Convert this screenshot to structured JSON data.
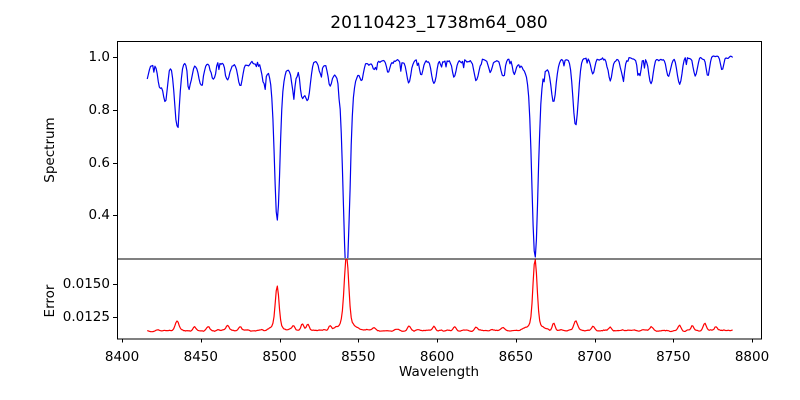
{
  "chart_data": {
    "type": "line",
    "title": "20110423_1738m64_080",
    "xlabel": "Wavelength",
    "grid": false,
    "legend": null,
    "xlim": [
      8396.8,
      8805.7
    ],
    "xticks": [
      8400,
      8450,
      8500,
      8550,
      8600,
      8650,
      8700,
      8750,
      8800
    ],
    "xtick_labels": [
      "8400",
      "8450",
      "8500",
      "8550",
      "8600",
      "8650",
      "8700",
      "8750",
      "8800"
    ],
    "x_start": 8416,
    "x_end": 8788,
    "axis_color": "#000000",
    "panels": [
      {
        "name": "spectrum",
        "ylabel": "Spectrum",
        "color": "#0000ee",
        "ylim": [
          0.2368,
          1.0608
        ],
        "yticks": [
          0.4,
          0.6,
          0.8,
          1.0
        ],
        "ytick_labels": [
          "0.4",
          "0.6",
          "0.8",
          "1.0"
        ],
        "model": {
          "description": "normalized stellar spectrum, continuum ~0.97-1.0 with absorption lines; Ca II triplet at 8498/8542/8662",
          "continuum_start": 0.972,
          "continuum_end": 0.998,
          "noise_amp": 0.012,
          "micro_dip_prob": 0.12,
          "micro_dip_depth": 0.03,
          "seed": 7,
          "step": 0.7,
          "absorption_lines_format": "[center_angstrom, min_flux, sigma_angstrom]",
          "absorption_lines": [
            [
              8414.0,
              0.9,
              2.2
            ],
            [
              8424.0,
              0.89,
              1.3
            ],
            [
              8427.5,
              0.835,
              1.4
            ],
            [
              8435.0,
              0.74,
              1.6
            ],
            [
              8443.0,
              0.9,
              1.3
            ],
            [
              8450.0,
              0.89,
              1.4
            ],
            [
              8458.0,
              0.915,
              1.2
            ],
            [
              8467.0,
              0.905,
              1.4
            ],
            [
              8475.0,
              0.885,
              1.5
            ],
            [
              8490.0,
              0.91,
              1.2
            ],
            [
              8498.5,
              0.445,
              1.7
            ],
            [
              8509.0,
              0.878,
              1.3
            ],
            [
              8514.5,
              0.85,
              1.3
            ],
            [
              8518.0,
              0.84,
              1.5
            ],
            [
              8526.0,
              0.94,
              1.0
            ],
            [
              8532.0,
              0.91,
              1.2
            ],
            [
              8542.5,
              0.27,
              2.0
            ],
            [
              8552.0,
              0.94,
              1.0
            ],
            [
              8560.0,
              0.945,
              1.0
            ],
            [
              8569.0,
              0.94,
              1.0
            ],
            [
              8582.0,
              0.9,
              1.4
            ],
            [
              8590.0,
              0.935,
              1.0
            ],
            [
              8598.0,
              0.9,
              1.4
            ],
            [
              8611.0,
              0.925,
              1.2
            ],
            [
              8625.0,
              0.915,
              1.4
            ],
            [
              8634.0,
              0.94,
              1.0
            ],
            [
              8642.0,
              0.925,
              1.2
            ],
            [
              8649.0,
              0.94,
              1.0
            ],
            [
              8662.2,
              0.33,
              1.9
            ],
            [
              8674.0,
              0.83,
              1.5
            ],
            [
              8688.0,
              0.745,
              1.7
            ],
            [
              8699.0,
              0.93,
              1.2
            ],
            [
              8710.0,
              0.915,
              1.3
            ],
            [
              8718.0,
              0.93,
              1.2
            ],
            [
              8728.0,
              0.935,
              1.0
            ],
            [
              8736.0,
              0.9,
              1.4
            ],
            [
              8747.0,
              0.93,
              1.2
            ],
            [
              8754.0,
              0.89,
              1.5
            ],
            [
              8764.0,
              0.93,
              1.2
            ],
            [
              8772.0,
              0.935,
              1.0
            ],
            [
              8781.0,
              0.945,
              1.0
            ]
          ],
          "wings_format": "[center_angstrom, extra_depth, sigma_angstrom]",
          "wings": [
            [
              8498.5,
              0.07,
              5.0
            ],
            [
              8542.5,
              0.1,
              6.0
            ],
            [
              8662.2,
              0.09,
              5.5
            ]
          ]
        }
      },
      {
        "name": "error",
        "ylabel": "Error",
        "color": "#ff0000",
        "ylim": [
          0.010833,
          0.01697
        ],
        "yticks": [
          0.0125,
          0.015
        ],
        "ytick_labels": [
          "0.0125",
          "0.0150"
        ],
        "model": {
          "description": "error spectrum, flat baseline with spikes at strong absorption lines",
          "baseline": 0.01145,
          "noise_amp": 0.0001,
          "seed": 13,
          "step": 0.7,
          "peaks_format": "[center_angstrom, peak_value, sigma_angstrom]",
          "peaks": [
            [
              8435.0,
              0.01225,
              1.2
            ],
            [
              8446.0,
              0.0118,
              0.9
            ],
            [
              8455.0,
              0.01175,
              0.9
            ],
            [
              8467.0,
              0.0118,
              0.9
            ],
            [
              8475.0,
              0.0118,
              0.9
            ],
            [
              8498.5,
              0.01455,
              1.2
            ],
            [
              8509.0,
              0.0118,
              0.9
            ],
            [
              8514.5,
              0.01195,
              0.9
            ],
            [
              8518.0,
              0.0119,
              0.9
            ],
            [
              8532.0,
              0.01175,
              0.9
            ],
            [
              8542.5,
              0.0166,
              1.4
            ],
            [
              8560.0,
              0.0117,
              0.9
            ],
            [
              8582.0,
              0.01175,
              0.9
            ],
            [
              8598.0,
              0.01175,
              0.9
            ],
            [
              8611.0,
              0.0117,
              0.9
            ],
            [
              8625.0,
              0.01175,
              0.9
            ],
            [
              8642.0,
              0.0117,
              0.9
            ],
            [
              8662.2,
              0.0164,
              1.3
            ],
            [
              8674.0,
              0.012,
              0.9
            ],
            [
              8688.0,
              0.0122,
              1.1
            ],
            [
              8699.0,
              0.01175,
              0.9
            ],
            [
              8710.0,
              0.01175,
              0.9
            ],
            [
              8736.0,
              0.01175,
              0.9
            ],
            [
              8754.0,
              0.0118,
              0.9
            ],
            [
              8762.0,
              0.01185,
              0.9
            ],
            [
              8770.0,
              0.012,
              0.9
            ],
            [
              8777.0,
              0.0118,
              0.9
            ]
          ],
          "wings_format": "[center_angstrom, extra_height, sigma_angstrom]",
          "wings": [
            [
              8498.5,
              0.0003,
              4.0
            ],
            [
              8542.5,
              0.0006,
              5.0
            ],
            [
              8662.2,
              0.0005,
              4.5
            ]
          ]
        }
      }
    ]
  }
}
